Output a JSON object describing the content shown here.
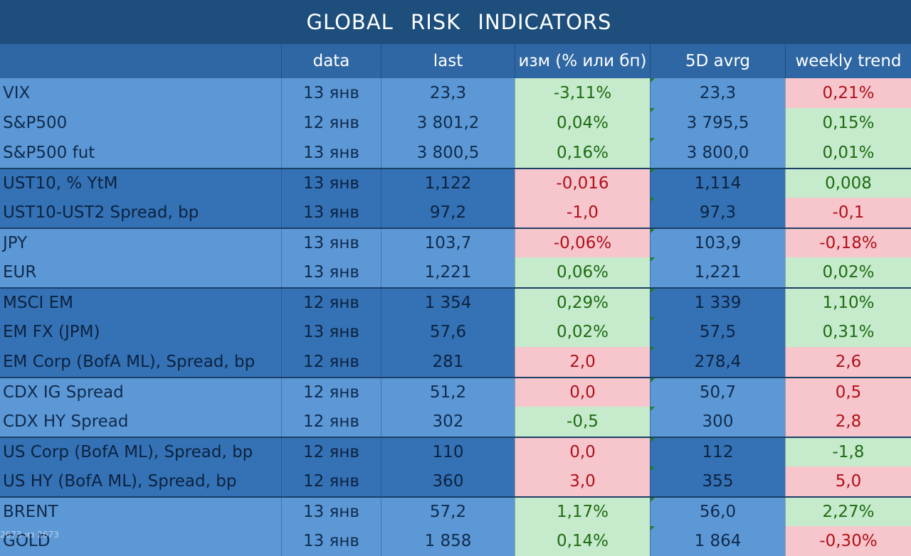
{
  "title": "GLOBAL  RISK  INDICATORS",
  "columns": [
    "",
    "data",
    "last",
    "изм (% или бп)",
    "5D avrg",
    "weekly trend"
  ],
  "groups": [
    {
      "shade": "light",
      "rows": [
        {
          "name": "VIX",
          "date": "13 янв",
          "last": "23,3",
          "change": "-3,11%",
          "change_dir": "pos",
          "avg": "23,3",
          "trend": "0,21%",
          "trend_dir": "neg"
        },
        {
          "name": "S&P500",
          "date": "12 янв",
          "last": "3 801,2",
          "change": "0,04%",
          "change_dir": "pos",
          "avg": "3 795,5",
          "trend": "0,15%",
          "trend_dir": "pos"
        },
        {
          "name": "S&P500 fut",
          "date": "13 янв",
          "last": "3 800,5",
          "change": "0,16%",
          "change_dir": "pos",
          "avg": "3 800,0",
          "trend": "0,01%",
          "trend_dir": "pos"
        }
      ]
    },
    {
      "shade": "dark",
      "rows": [
        {
          "name": "UST10, % YtM",
          "date": "13 янв",
          "last": "1,122",
          "change": "-0,016",
          "change_dir": "neg",
          "avg": "1,114",
          "trend": "0,008",
          "trend_dir": "pos"
        },
        {
          "name": "UST10-UST2 Spread, bp",
          "date": "13 янв",
          "last": "97,2",
          "change": "-1,0",
          "change_dir": "neg",
          "avg": "97,3",
          "trend": "-0,1",
          "trend_dir": "neg"
        }
      ]
    },
    {
      "shade": "light",
      "rows": [
        {
          "name": "JPY",
          "date": "13 янв",
          "last": "103,7",
          "change": "-0,06%",
          "change_dir": "neg",
          "avg": "103,9",
          "trend": "-0,18%",
          "trend_dir": "neg"
        },
        {
          "name": "EUR",
          "date": "13 янв",
          "last": "1,221",
          "change": "0,06%",
          "change_dir": "pos",
          "avg": "1,221",
          "trend": "0,02%",
          "trend_dir": "pos"
        }
      ]
    },
    {
      "shade": "dark",
      "rows": [
        {
          "name": "MSCI EM",
          "date": "12 янв",
          "last": "1 354",
          "change": "0,29%",
          "change_dir": "pos",
          "avg": "1 339",
          "trend": "1,10%",
          "trend_dir": "pos"
        },
        {
          "name": "EM FX (JPM)",
          "date": "13 янв",
          "last": "57,6",
          "change": "0,02%",
          "change_dir": "pos",
          "avg": "57,5",
          "trend": "0,31%",
          "trend_dir": "pos"
        },
        {
          "name": "EM Corp (BofA ML), Spread, bp",
          "date": "12 янв",
          "last": "281",
          "change": "2,0",
          "change_dir": "neg",
          "avg": "278,4",
          "trend": "2,6",
          "trend_dir": "neg"
        }
      ]
    },
    {
      "shade": "light",
      "rows": [
        {
          "name": "CDX IG Spread",
          "date": "12 янв",
          "last": "51,2",
          "change": "0,0",
          "change_dir": "neg",
          "avg": "50,7",
          "trend": "0,5",
          "trend_dir": "neg"
        },
        {
          "name": "CDX HY Spread",
          "date": "12 янв",
          "last": "302",
          "change": "-0,5",
          "change_dir": "pos",
          "avg": "300",
          "trend": "2,8",
          "trend_dir": "neg"
        }
      ]
    },
    {
      "shade": "dark",
      "rows": [
        {
          "name": "US Corp (BofA ML), Spread, bp",
          "date": "12 янв",
          "last": "110",
          "change": "0,0",
          "change_dir": "neg",
          "avg": "112",
          "trend": "-1,8",
          "trend_dir": "pos"
        },
        {
          "name": "US HY (BofA ML), Spread, bp",
          "date": "12 янв",
          "last": "360",
          "change": "3,0",
          "change_dir": "neg",
          "avg": "355",
          "trend": "5,0",
          "trend_dir": "neg"
        }
      ]
    },
    {
      "shade": "light",
      "rows": [
        {
          "name": "BRENT",
          "date": "13 янв",
          "last": "57,2",
          "change": "1,17%",
          "change_dir": "pos",
          "avg": "56,0",
          "trend": "2,27%",
          "trend_dir": "pos"
        },
        {
          "name": "GOLD",
          "date": "13 янв",
          "last": "1 858",
          "change": "0,14%",
          "change_dir": "pos",
          "avg": "1 864",
          "trend": "-0,30%",
          "trend_dir": "neg"
        }
      ]
    }
  ],
  "watermark": "2673 из 2673",
  "colors": {
    "positive_bg": "#c5ebcc",
    "negative_bg": "#f6c6cc",
    "positive_text": "#1f6a12",
    "negative_text": "#b0101a"
  }
}
